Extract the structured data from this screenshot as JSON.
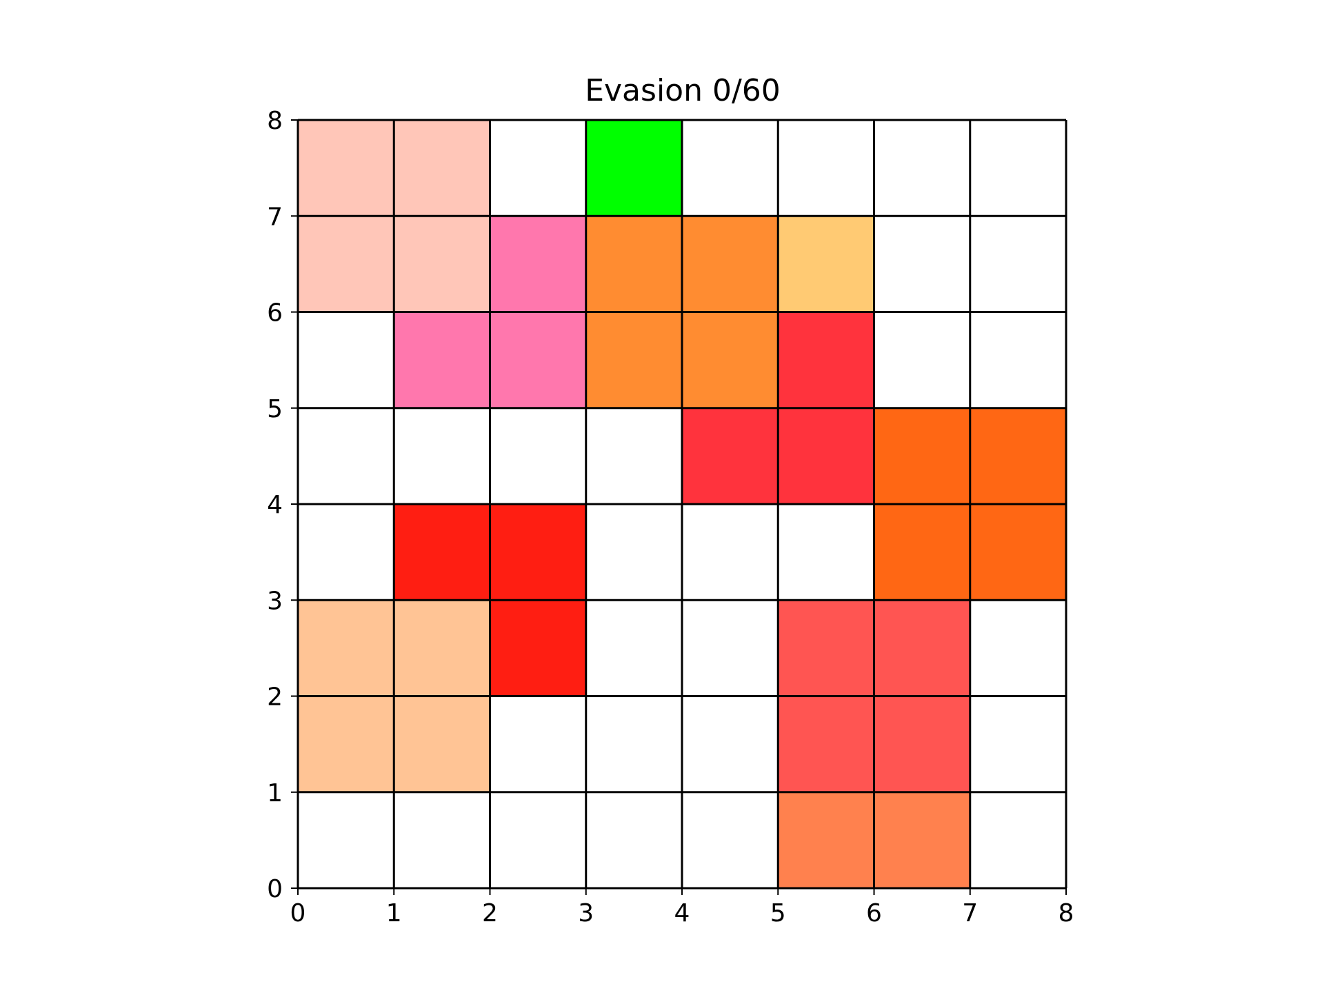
{
  "title": "Evasion 0/60",
  "grid": {
    "cols": 8,
    "rows": 8,
    "x_ticks": [
      "0",
      "1",
      "2",
      "3",
      "4",
      "5",
      "6",
      "7",
      "8"
    ],
    "y_ticks": [
      "0",
      "1",
      "2",
      "3",
      "4",
      "5",
      "6",
      "7",
      "8"
    ]
  },
  "colors": {
    "background": "#ffffff",
    "grid_line": "#000000"
  },
  "cells": [
    {
      "x": 0,
      "y": 7,
      "color": "#ffc6b8",
      "piece": "peach-block"
    },
    {
      "x": 1,
      "y": 7,
      "color": "#ffc6b8",
      "piece": "peach-block"
    },
    {
      "x": 0,
      "y": 6,
      "color": "#ffc6b8",
      "piece": "peach-block"
    },
    {
      "x": 1,
      "y": 6,
      "color": "#ffc6b8",
      "piece": "peach-block"
    },
    {
      "x": 3,
      "y": 7,
      "color": "#00ff00",
      "piece": "player"
    },
    {
      "x": 2,
      "y": 6,
      "color": "#ff77ad",
      "piece": "pink-block"
    },
    {
      "x": 1,
      "y": 5,
      "color": "#ff77ad",
      "piece": "pink-block"
    },
    {
      "x": 2,
      "y": 5,
      "color": "#ff77ad",
      "piece": "pink-block"
    },
    {
      "x": 3,
      "y": 6,
      "color": "#ff8c31",
      "piece": "orange-block"
    },
    {
      "x": 4,
      "y": 6,
      "color": "#ff8c31",
      "piece": "orange-block"
    },
    {
      "x": 3,
      "y": 5,
      "color": "#ff8c31",
      "piece": "orange-block"
    },
    {
      "x": 4,
      "y": 5,
      "color": "#ff8c31",
      "piece": "orange-block"
    },
    {
      "x": 5,
      "y": 6,
      "color": "#ffca73",
      "piece": "light-orange-block"
    },
    {
      "x": 5,
      "y": 5,
      "color": "#ff333d",
      "piece": "crimson-block"
    },
    {
      "x": 4,
      "y": 4,
      "color": "#ff333d",
      "piece": "crimson-block"
    },
    {
      "x": 5,
      "y": 4,
      "color": "#ff333d",
      "piece": "crimson-block"
    },
    {
      "x": 6,
      "y": 4,
      "color": "#ff6714",
      "piece": "dark-orange-block"
    },
    {
      "x": 7,
      "y": 4,
      "color": "#ff6714",
      "piece": "dark-orange-block"
    },
    {
      "x": 6,
      "y": 3,
      "color": "#ff6714",
      "piece": "dark-orange-block"
    },
    {
      "x": 7,
      "y": 3,
      "color": "#ff6714",
      "piece": "dark-orange-block"
    },
    {
      "x": 1,
      "y": 3,
      "color": "#ff1e12",
      "piece": "red-block"
    },
    {
      "x": 2,
      "y": 3,
      "color": "#ff1e12",
      "piece": "red-block"
    },
    {
      "x": 2,
      "y": 2,
      "color": "#ff1e12",
      "piece": "red-block"
    },
    {
      "x": 0,
      "y": 2,
      "color": "#ffc495",
      "piece": "apricot-block"
    },
    {
      "x": 1,
      "y": 2,
      "color": "#ffc495",
      "piece": "apricot-block"
    },
    {
      "x": 0,
      "y": 1,
      "color": "#ffc495",
      "piece": "apricot-block"
    },
    {
      "x": 1,
      "y": 1,
      "color": "#ffc495",
      "piece": "apricot-block"
    },
    {
      "x": 5,
      "y": 2,
      "color": "#ff5552",
      "piece": "salmon-block"
    },
    {
      "x": 6,
      "y": 2,
      "color": "#ff5552",
      "piece": "salmon-block"
    },
    {
      "x": 5,
      "y": 1,
      "color": "#ff5552",
      "piece": "salmon-block"
    },
    {
      "x": 6,
      "y": 1,
      "color": "#ff5552",
      "piece": "salmon-block"
    },
    {
      "x": 5,
      "y": 0,
      "color": "#ff814e",
      "piece": "coral-block"
    },
    {
      "x": 6,
      "y": 0,
      "color": "#ff814e",
      "piece": "coral-block"
    }
  ]
}
